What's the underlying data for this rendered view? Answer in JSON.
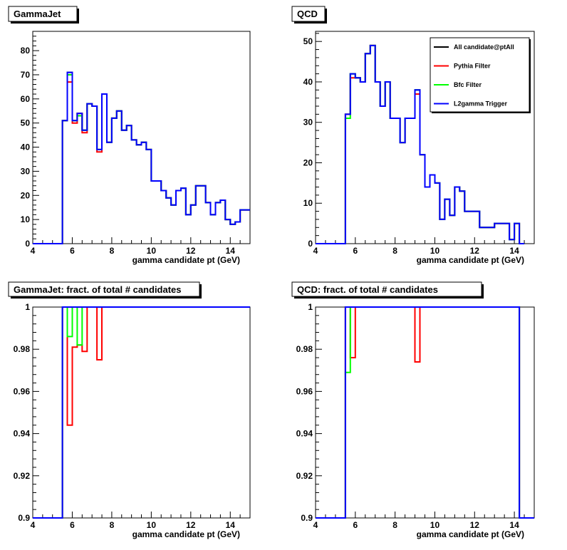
{
  "colors": {
    "all": "#000000",
    "pythia": "#ff0000",
    "bfc": "#00ff00",
    "l2": "#0000ff"
  },
  "legend": [
    {
      "label": "All candidate@ptAll",
      "color": "#000000"
    },
    {
      "label": "Pythia Filter",
      "color": "#ff0000"
    },
    {
      "label": "Bfc Filter",
      "color": "#00ff00"
    },
    {
      "label": "L2gamma Trigger",
      "color": "#0000ff"
    }
  ],
  "chart_data": [
    {
      "id": "gj",
      "type": "line",
      "title": "GammaJet",
      "xlabel": "gamma candidate pt (GeV)",
      "xlim": [
        4,
        15
      ],
      "ylim": [
        0,
        88
      ],
      "xticks": [
        4,
        6,
        8,
        10,
        12,
        14
      ],
      "yticks": [
        0,
        10,
        20,
        30,
        40,
        50,
        60,
        70,
        80
      ],
      "bin_edges_start": 4,
      "bin_width": 0.25,
      "series": [
        {
          "key": "all",
          "values": [
            0,
            0,
            0,
            0,
            0,
            0,
            51,
            71,
            51,
            54,
            47,
            58,
            57,
            39,
            62,
            42,
            52,
            55,
            47,
            49,
            43,
            41,
            42,
            39,
            26,
            26,
            22,
            19,
            16,
            22,
            23,
            12,
            16,
            24,
            24,
            17,
            12,
            17,
            18,
            10,
            8,
            9,
            14,
            14
          ]
        },
        {
          "key": "pythia",
          "values": [
            0,
            0,
            0,
            0,
            0,
            0,
            51,
            67,
            50,
            54,
            46,
            58,
            57,
            38,
            62,
            42,
            52,
            55,
            47,
            49,
            43,
            41,
            42,
            39,
            26,
            26,
            22,
            19,
            16,
            22,
            23,
            12,
            16,
            24,
            24,
            17,
            12,
            17,
            18,
            10,
            8,
            9,
            14,
            14
          ]
        },
        {
          "key": "bfc",
          "values": [
            0,
            0,
            0,
            0,
            0,
            0,
            51,
            70,
            51,
            53,
            47,
            58,
            57,
            39,
            62,
            42,
            52,
            55,
            47,
            49,
            43,
            41,
            42,
            39,
            26,
            26,
            22,
            19,
            16,
            22,
            23,
            12,
            16,
            24,
            24,
            17,
            12,
            17,
            18,
            10,
            8,
            9,
            14,
            14
          ]
        },
        {
          "key": "l2",
          "values": [
            0,
            0,
            0,
            0,
            0,
            0,
            51,
            71,
            51,
            54,
            47,
            58,
            57,
            39,
            62,
            42,
            52,
            55,
            47,
            49,
            43,
            41,
            42,
            39,
            26,
            26,
            22,
            19,
            16,
            22,
            23,
            12,
            16,
            24,
            24,
            17,
            12,
            17,
            18,
            10,
            8,
            9,
            14,
            14
          ]
        }
      ]
    },
    {
      "id": "qcd",
      "type": "line",
      "title": "QCD",
      "xlabel": "gamma candidate pt (GeV)",
      "xlim": [
        4,
        15
      ],
      "ylim": [
        0,
        52.5
      ],
      "xticks": [
        4,
        6,
        8,
        10,
        12,
        14
      ],
      "yticks": [
        0,
        10,
        20,
        30,
        40,
        50
      ],
      "bin_edges_start": 4,
      "bin_width": 0.25,
      "series": [
        {
          "key": "all",
          "values": [
            0,
            0,
            0,
            0,
            0,
            0,
            32,
            42,
            41,
            40,
            47,
            49,
            40,
            34,
            40,
            31,
            31,
            25,
            31,
            31,
            38,
            22,
            14,
            17,
            15,
            6,
            11,
            7,
            14,
            13,
            8,
            8,
            8,
            4,
            4,
            4,
            5,
            5,
            5,
            1,
            5,
            0
          ]
        },
        {
          "key": "pythia",
          "values": [
            0,
            0,
            0,
            0,
            0,
            0,
            32,
            41,
            41,
            40,
            47,
            49,
            40,
            34,
            40,
            31,
            31,
            25,
            31,
            31,
            37,
            22,
            14,
            17,
            15,
            6,
            11,
            7,
            14,
            13,
            8,
            8,
            8,
            4,
            4,
            4,
            5,
            5,
            5,
            1,
            5,
            0
          ]
        },
        {
          "key": "bfc",
          "values": [
            0,
            0,
            0,
            0,
            0,
            0,
            31,
            42,
            41,
            40,
            47,
            49,
            40,
            34,
            40,
            31,
            31,
            25,
            31,
            31,
            38,
            22,
            14,
            17,
            15,
            6,
            11,
            7,
            14,
            13,
            8,
            8,
            8,
            4,
            4,
            4,
            5,
            5,
            5,
            1,
            5,
            0
          ]
        },
        {
          "key": "l2",
          "values": [
            0,
            0,
            0,
            0,
            0,
            0,
            32,
            42,
            41,
            40,
            47,
            49,
            40,
            34,
            40,
            31,
            31,
            25,
            31,
            31,
            38,
            22,
            14,
            17,
            15,
            6,
            11,
            7,
            14,
            13,
            8,
            8,
            8,
            4,
            4,
            4,
            5,
            5,
            5,
            1,
            5,
            0
          ]
        }
      ]
    },
    {
      "id": "gjf",
      "type": "line",
      "title": "GammaJet: fract. of total # candidates",
      "xlabel": "gamma candidate pt (GeV)",
      "xlim": [
        4,
        15
      ],
      "ylim": [
        0.9,
        1
      ],
      "xticks": [
        4,
        6,
        8,
        10,
        12,
        14
      ],
      "yticks": [
        0.9,
        0.92,
        0.94,
        0.96,
        0.98,
        1
      ],
      "bin_edges_start": 4,
      "bin_width": 0.25,
      "series": [
        {
          "key": "all",
          "values": [
            0.9,
            0.9,
            0.9,
            0.9,
            0.9,
            0.9,
            1,
            1,
            1,
            1,
            1,
            1,
            1,
            1,
            1,
            1,
            1,
            1,
            1,
            1,
            1,
            1,
            1,
            1,
            1,
            1,
            1,
            1,
            1,
            1,
            1,
            1,
            1,
            1,
            1,
            1,
            1,
            1,
            1,
            1,
            1,
            1,
            1,
            1
          ]
        },
        {
          "key": "pythia",
          "values": [
            0.9,
            0.9,
            0.9,
            0.9,
            0.9,
            0.9,
            1,
            0.944,
            0.981,
            0.982,
            0.979,
            1,
            1,
            0.975,
            1,
            1,
            1,
            1,
            1,
            1,
            1,
            1,
            1,
            1,
            1,
            1,
            1,
            1,
            1,
            1,
            1,
            1,
            1,
            1,
            1,
            1,
            1,
            1,
            1,
            1,
            1,
            1,
            1,
            1
          ]
        },
        {
          "key": "bfc",
          "values": [
            0.9,
            0.9,
            0.9,
            0.9,
            0.9,
            0.9,
            1,
            0.986,
            1,
            0.982,
            1,
            1,
            1,
            1,
            1,
            1,
            1,
            1,
            1,
            1,
            1,
            1,
            1,
            1,
            1,
            1,
            1,
            1,
            1,
            1,
            1,
            1,
            1,
            1,
            1,
            1,
            1,
            1,
            1,
            1,
            1,
            1,
            1,
            1
          ]
        },
        {
          "key": "l2",
          "values": [
            0.9,
            0.9,
            0.9,
            0.9,
            0.9,
            0.9,
            1,
            1,
            1,
            1,
            1,
            1,
            1,
            1,
            1,
            1,
            1,
            1,
            1,
            1,
            1,
            1,
            1,
            1,
            1,
            1,
            1,
            1,
            1,
            1,
            1,
            1,
            1,
            1,
            1,
            1,
            1,
            1,
            1,
            1,
            1,
            1,
            1,
            1
          ]
        }
      ]
    },
    {
      "id": "qcdf",
      "type": "line",
      "title": "QCD: fract. of total # candidates",
      "xlabel": "gamma candidate pt (GeV)",
      "xlim": [
        4,
        15
      ],
      "ylim": [
        0.9,
        1
      ],
      "xticks": [
        4,
        6,
        8,
        10,
        12,
        14
      ],
      "yticks": [
        0.9,
        0.92,
        0.94,
        0.96,
        0.98,
        1
      ],
      "bin_edges_start": 4,
      "bin_width": 0.25,
      "series": [
        {
          "key": "all",
          "values": [
            0.9,
            0.9,
            0.9,
            0.9,
            0.9,
            0.9,
            1,
            1,
            1,
            1,
            1,
            1,
            1,
            1,
            1,
            1,
            1,
            1,
            1,
            1,
            1,
            1,
            1,
            1,
            1,
            1,
            1,
            1,
            1,
            1,
            1,
            1,
            1,
            1,
            1,
            1,
            1,
            1,
            1,
            1,
            1,
            0.9,
            0.9,
            0.9
          ]
        },
        {
          "key": "pythia",
          "values": [
            0.9,
            0.9,
            0.9,
            0.9,
            0.9,
            0.9,
            1,
            0.976,
            1,
            1,
            1,
            1,
            1,
            1,
            1,
            1,
            1,
            1,
            1,
            1,
            0.974,
            1,
            1,
            1,
            1,
            1,
            1,
            1,
            1,
            1,
            1,
            1,
            1,
            1,
            1,
            1,
            1,
            1,
            1,
            1,
            1,
            0.9,
            0.9,
            0.9
          ]
        },
        {
          "key": "bfc",
          "values": [
            0.9,
            0.9,
            0.9,
            0.9,
            0.9,
            0.9,
            0.969,
            1,
            1,
            1,
            1,
            1,
            1,
            1,
            1,
            1,
            1,
            1,
            1,
            1,
            1,
            1,
            1,
            1,
            1,
            1,
            1,
            1,
            1,
            1,
            1,
            1,
            1,
            1,
            1,
            1,
            1,
            1,
            1,
            1,
            1,
            0.9,
            0.9,
            0.9
          ]
        },
        {
          "key": "l2",
          "values": [
            0.9,
            0.9,
            0.9,
            0.9,
            0.9,
            0.9,
            1,
            1,
            1,
            1,
            1,
            1,
            1,
            1,
            1,
            1,
            1,
            1,
            1,
            1,
            1,
            1,
            1,
            1,
            1,
            1,
            1,
            1,
            1,
            1,
            1,
            1,
            1,
            1,
            1,
            1,
            1,
            1,
            1,
            1,
            1,
            0.9,
            0.9,
            0.9
          ]
        }
      ]
    }
  ]
}
